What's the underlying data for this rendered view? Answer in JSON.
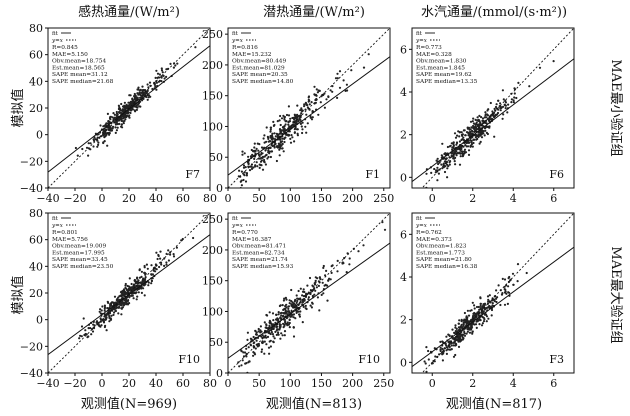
{
  "column_titles": [
    "感热通量/(W/m²)",
    "潜热通量/(W/m²)",
    "水汽通量/(mmol/(s·m²))"
  ],
  "row_labels": [
    "MAE最小验证组",
    "MAE最大验证组"
  ],
  "ylabel": "模拟值",
  "xlabels": [
    "观测值(N=969)",
    "观测值(N=813)",
    "观测值(N=817)"
  ],
  "legend": {
    "fit": "fit",
    "one_to_one": "y=x"
  },
  "chart_data": [
    {
      "type": "scatter",
      "row": 0,
      "col": 0,
      "panel_label": "F7",
      "xlim": [
        -40,
        80
      ],
      "ylim": [
        -40,
        80
      ],
      "xticks": [
        -40,
        -20,
        0,
        20,
        40,
        60,
        80
      ],
      "yticks": [
        -40,
        -20,
        0,
        20,
        40,
        60,
        80
      ],
      "stats": [
        "R=0.845",
        "MAE=5.150",
        "Obv.mean=18.754",
        "Est.mean=18.565",
        "SAPE mean=31.12",
        "SAPE median=21.68"
      ],
      "fit": {
        "slope": 0.79,
        "intercept": 3.5
      },
      "cluster": {
        "center": [
          15,
          15
        ],
        "sd_x": 12,
        "sd_y": 10,
        "n": 420
      }
    },
    {
      "type": "scatter",
      "row": 0,
      "col": 1,
      "panel_label": "F1",
      "xlim": [
        0,
        260
      ],
      "ylim": [
        0,
        260
      ],
      "xticks": [
        0,
        50,
        100,
        150,
        200,
        250
      ],
      "yticks": [
        0,
        50,
        100,
        150,
        200,
        250
      ],
      "stats": [
        "R=0.816",
        "MAE=15.232",
        "Obv.mean=80.449",
        "Est.mean=81.029",
        "SAPE mean=20.35",
        "SAPE median=14.80"
      ],
      "fit": {
        "slope": 0.74,
        "intercept": 21
      },
      "cluster": {
        "center": [
          75,
          77
        ],
        "sd_x": 40,
        "sd_y": 35,
        "n": 420
      }
    },
    {
      "type": "scatter",
      "row": 0,
      "col": 2,
      "panel_label": "F6",
      "xlim": [
        -1,
        7
      ],
      "ylim": [
        -0.5,
        7
      ],
      "xticks": [
        0,
        2,
        4,
        6
      ],
      "yticks": [
        0,
        2,
        4,
        6
      ],
      "stats": [
        "R=0.773",
        "MAE=0.328",
        "Obv.mean=1.830",
        "Est.mean=1.845",
        "SAPE mean=19.62",
        "SAPE median=13.35"
      ],
      "fit": {
        "slope": 0.72,
        "intercept": 0.52
      },
      "cluster": {
        "center": [
          1.7,
          1.75
        ],
        "sd_x": 0.9,
        "sd_y": 0.8,
        "n": 420
      }
    },
    {
      "type": "scatter",
      "row": 1,
      "col": 0,
      "panel_label": "F10",
      "xlim": [
        -40,
        80
      ],
      "ylim": [
        -40,
        80
      ],
      "xticks": [
        -40,
        -20,
        0,
        20,
        40,
        60,
        80
      ],
      "yticks": [
        -40,
        -20,
        0,
        20,
        40,
        60,
        80
      ],
      "stats": [
        "R=0.801",
        "MAE=5.756",
        "Obv.mean=19.009",
        "Est.mean=17.995",
        "SAPE mean=33.45",
        "SAPE median=23.50"
      ],
      "fit": {
        "slope": 0.75,
        "intercept": 3.8
      },
      "cluster": {
        "center": [
          15,
          15
        ],
        "sd_x": 13,
        "sd_y": 11,
        "n": 420
      }
    },
    {
      "type": "scatter",
      "row": 1,
      "col": 1,
      "panel_label": "F10",
      "xlim": [
        0,
        260
      ],
      "ylim": [
        0,
        260
      ],
      "xticks": [
        0,
        50,
        100,
        150,
        200,
        250
      ],
      "yticks": [
        0,
        50,
        100,
        150,
        200,
        250
      ],
      "stats": [
        "R=0.770",
        "MAE=16.387",
        "Obv.mean=81.471",
        "Est.mean=82.734",
        "SAPE mean=21.74",
        "SAPE median=15.93"
      ],
      "fit": {
        "slope": 0.72,
        "intercept": 24
      },
      "cluster": {
        "center": [
          80,
          82
        ],
        "sd_x": 42,
        "sd_y": 36,
        "n": 420
      }
    },
    {
      "type": "scatter",
      "row": 1,
      "col": 2,
      "panel_label": "F3",
      "xlim": [
        -1,
        7
      ],
      "ylim": [
        -0.5,
        7
      ],
      "xticks": [
        0,
        2,
        4,
        6
      ],
      "yticks": [
        0,
        2,
        4,
        6
      ],
      "stats": [
        "R=0.762",
        "MAE=0.373",
        "Obv.mean=1.823",
        "Est.mean=1.773",
        "SAPE mean=21.80",
        "SAPE median=16.38"
      ],
      "fit": {
        "slope": 0.7,
        "intercept": 0.5
      },
      "cluster": {
        "center": [
          1.7,
          1.7
        ],
        "sd_x": 0.9,
        "sd_y": 0.8,
        "n": 420
      }
    }
  ]
}
